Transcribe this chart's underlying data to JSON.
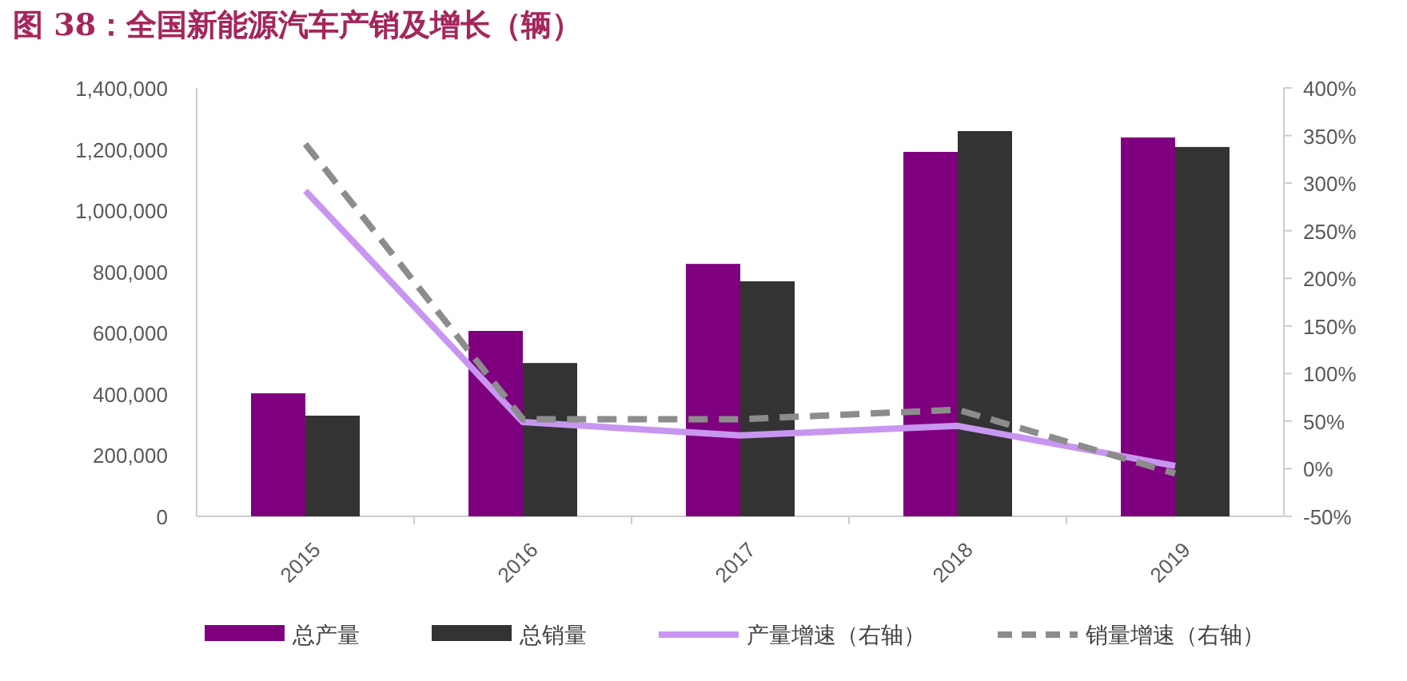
{
  "chart_data": {
    "type": "bar",
    "title": "图 38：全国新能源汽车产销及增长（辆）",
    "categories": [
      "2015",
      "2016",
      "2017",
      "2018",
      "2019"
    ],
    "series": [
      {
        "name": "总产量",
        "color": "#7f007f",
        "values": [
          402000,
          606000,
          825000,
          1191000,
          1238000
        ]
      },
      {
        "name": "总销量",
        "color": "#333333",
        "values": [
          329000,
          501000,
          768000,
          1259000,
          1207000
        ]
      },
      {
        "name": "产量增速（右轴）",
        "type": "line",
        "axis": "y2",
        "color": "#c896f0",
        "line_style": "solid",
        "values": [
          292,
          49,
          35,
          45,
          3
        ]
      },
      {
        "name": "销量增速（右轴）",
        "type": "line",
        "axis": "y2",
        "color": "#8c8c8c",
        "line_style": "dashed",
        "values": [
          341,
          52,
          52,
          62,
          -5
        ]
      }
    ],
    "ylim": [
      0,
      1400000
    ],
    "yticks": [
      0,
      {
        "value": 200000,
        "label": "200,000"
      },
      {
        "value": 400000,
        "label": "400,000"
      },
      {
        "value": 600000,
        "label": "600,000"
      },
      {
        "value": 800000,
        "label": "800,000"
      },
      {
        "value": 1000000,
        "label": "1,000,000"
      },
      {
        "value": 1200000,
        "label": "1,200,000"
      },
      {
        "value": 1400000,
        "label": "1,400,000"
      }
    ],
    "y2lim": [
      -50,
      400
    ],
    "y2ticks": [
      {
        "value": -50,
        "label": "-50%"
      },
      {
        "value": 0,
        "label": "0%"
      },
      {
        "value": 50,
        "label": "50%"
      },
      {
        "value": 100,
        "label": "100%"
      },
      {
        "value": 150,
        "label": "150%"
      },
      {
        "value": 200,
        "label": "200%"
      },
      {
        "value": 250,
        "label": "250%"
      },
      {
        "value": 300,
        "label": "300%"
      },
      {
        "value": 350,
        "label": "350%"
      },
      {
        "value": 400,
        "label": "400%"
      }
    ],
    "grid": false,
    "marker": "none",
    "legend": "bottom"
  }
}
